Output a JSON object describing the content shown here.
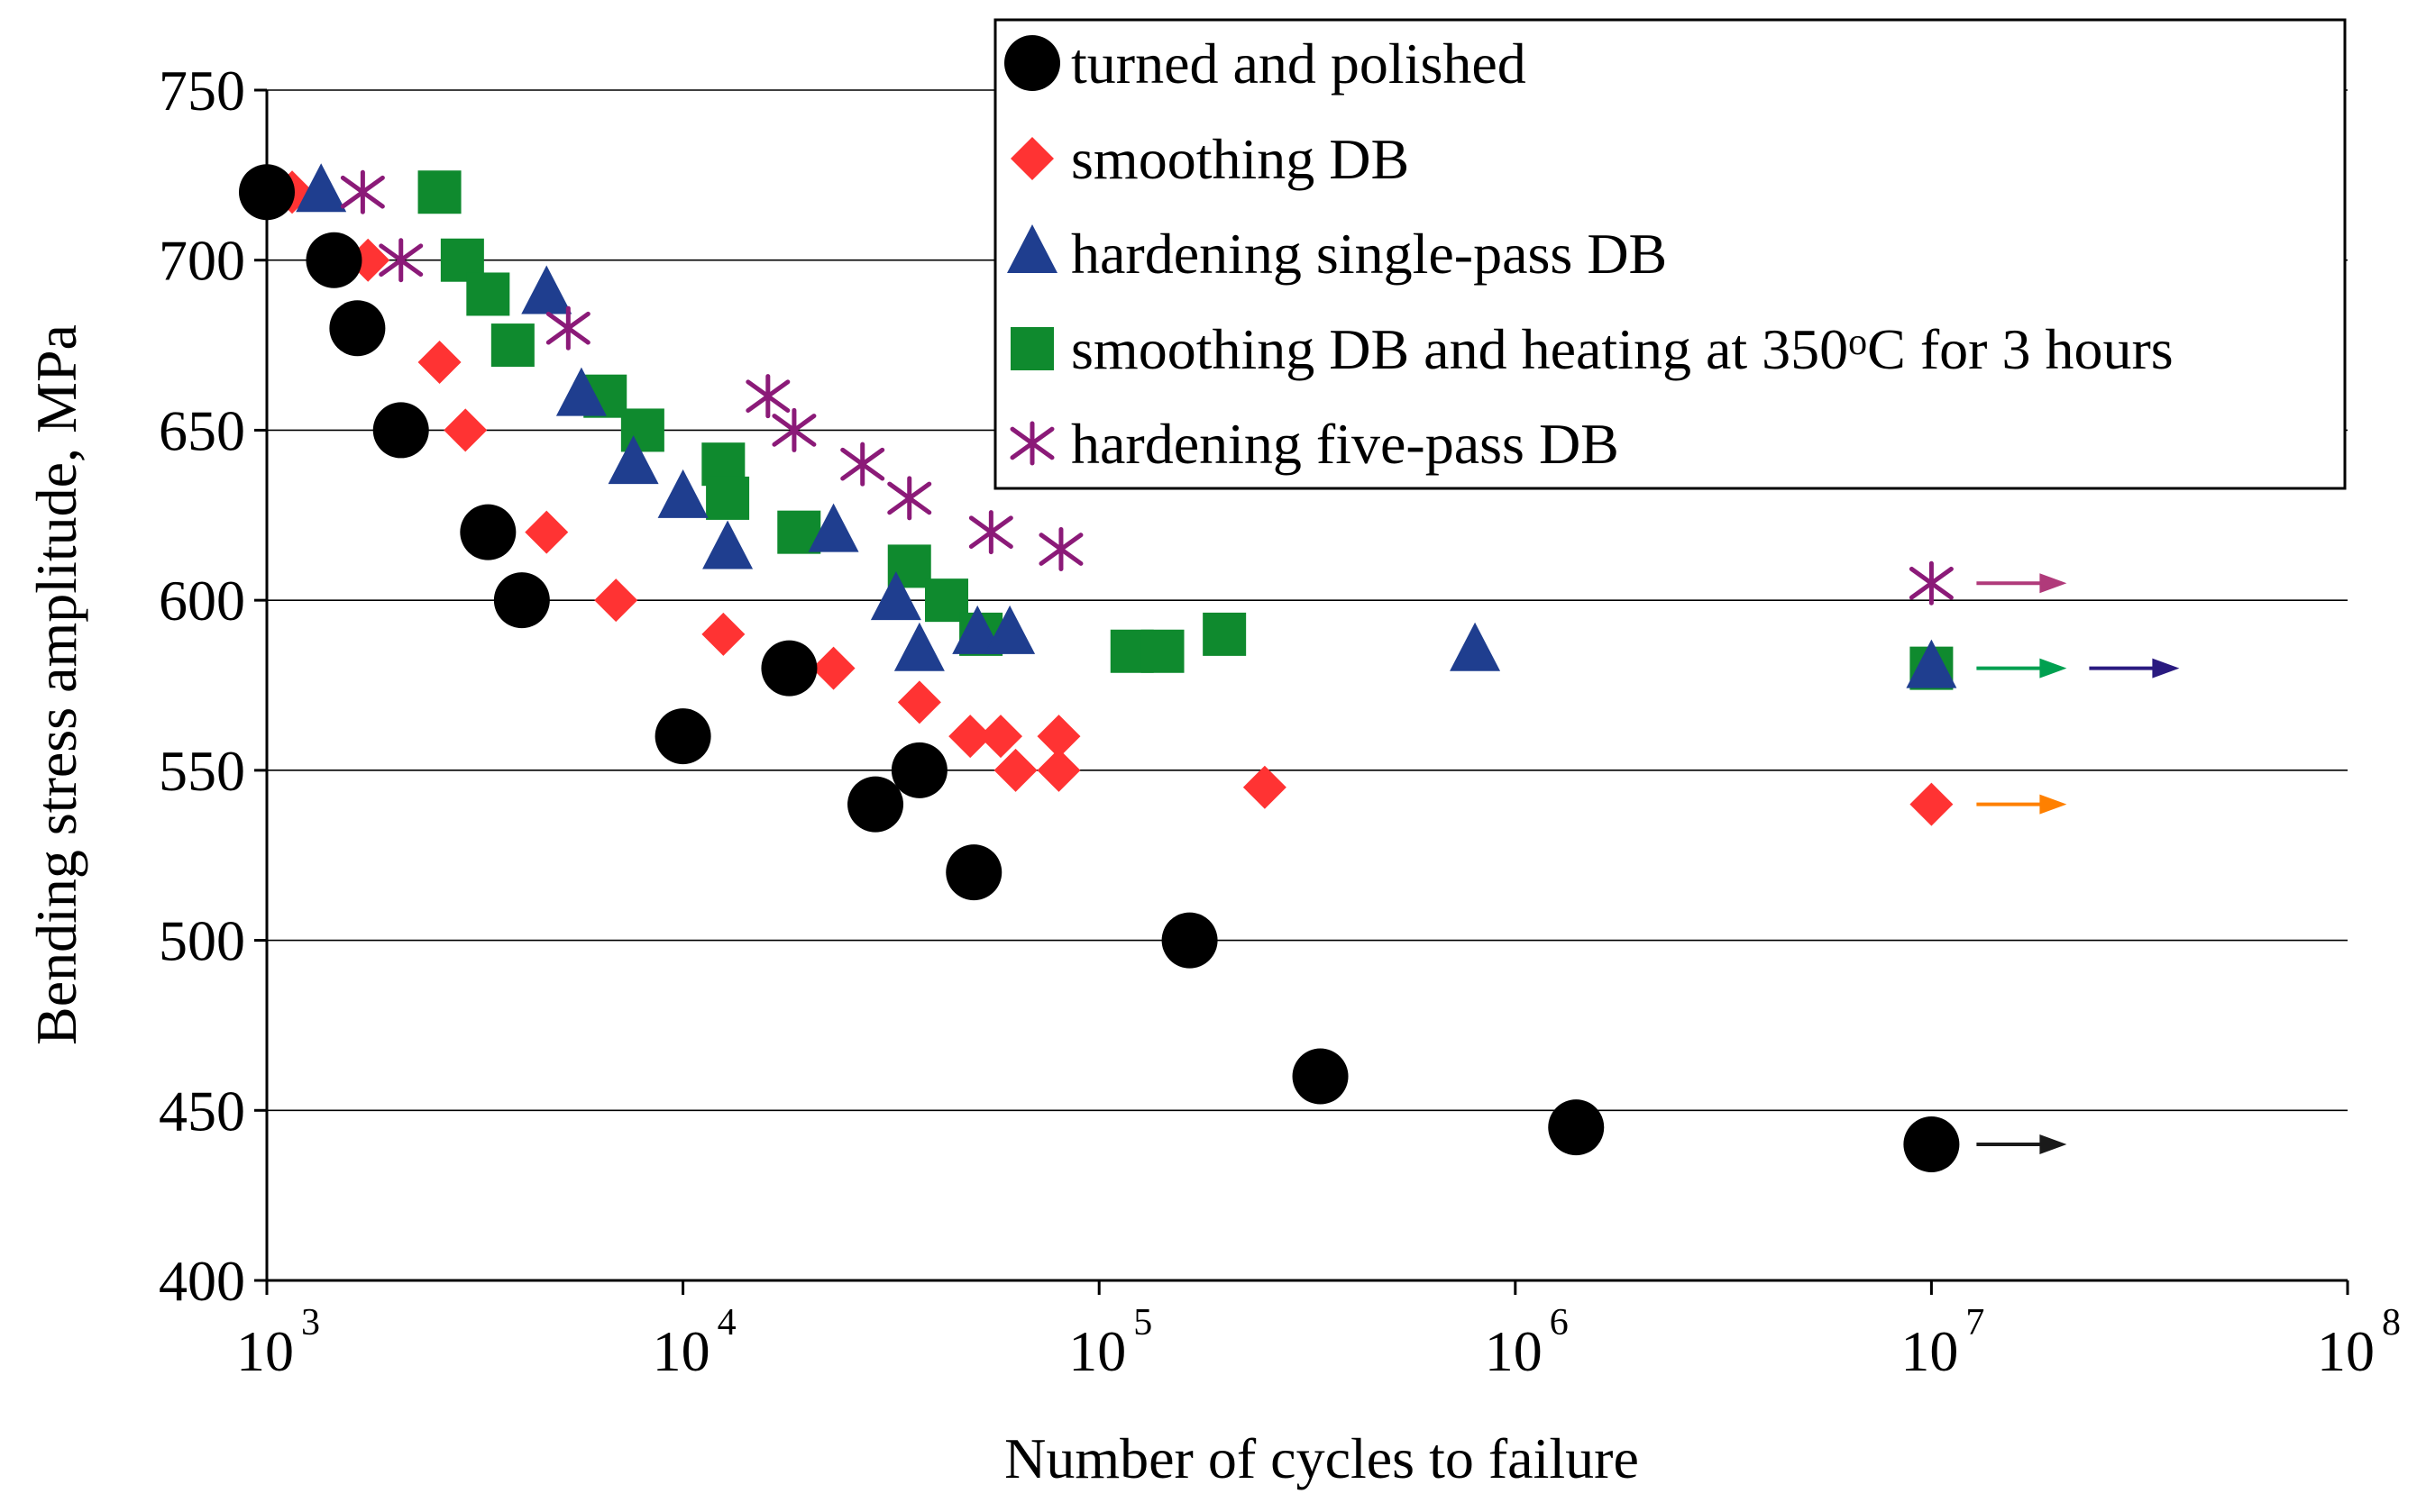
{
  "chart_data": {
    "type": "scatter",
    "title": "",
    "xlabel": "Number of cycles to failure",
    "ylabel": "Bending stress amplitude, MPa",
    "x_scale": "log",
    "xlim": [
      1000,
      100000000
    ],
    "ylim": [
      400,
      750
    ],
    "y_ticks": [
      400,
      450,
      500,
      550,
      600,
      650,
      700,
      750
    ],
    "x_ticks": [
      {
        "value": 1000,
        "base": "10",
        "exp": "3"
      },
      {
        "value": 10000,
        "base": "10",
        "exp": "4"
      },
      {
        "value": 100000,
        "base": "10",
        "exp": "5"
      },
      {
        "value": 1000000,
        "base": "10",
        "exp": "6"
      },
      {
        "value": 10000000,
        "base": "10",
        "exp": "7"
      },
      {
        "value": 100000000,
        "base": "10",
        "exp": "8"
      }
    ],
    "grid": "horizontal",
    "legend_position": "top-right",
    "series": [
      {
        "name": "turned and polished",
        "marker": "circle",
        "color": "#000000",
        "arrow_color": "#1a1a1a",
        "points": [
          [
            1000,
            720
          ],
          [
            1450,
            700
          ],
          [
            1650,
            680
          ],
          [
            2100,
            650
          ],
          [
            3400,
            620
          ],
          [
            4100,
            600
          ],
          [
            10000,
            560
          ],
          [
            18000,
            580
          ],
          [
            29000,
            540
          ],
          [
            37000,
            550
          ],
          [
            50000,
            520
          ],
          [
            165000,
            500
          ],
          [
            340000,
            460
          ],
          [
            1400000,
            445
          ],
          [
            10000000,
            440
          ]
        ],
        "runout": [
          [
            10000000,
            440
          ]
        ]
      },
      {
        "name": "smoothing DB",
        "marker": "diamond",
        "color": "#ff3333",
        "arrow_color": "#ff8000",
        "points": [
          [
            1150,
            720
          ],
          [
            1750,
            700
          ],
          [
            2600,
            670
          ],
          [
            3000,
            650
          ],
          [
            4700,
            620
          ],
          [
            6900,
            600
          ],
          [
            12500,
            590
          ],
          [
            23000,
            580
          ],
          [
            37000,
            570
          ],
          [
            49000,
            560
          ],
          [
            58000,
            560
          ],
          [
            63000,
            550
          ],
          [
            80000,
            560
          ],
          [
            80000,
            550
          ],
          [
            250000,
            545
          ],
          [
            10000000,
            540
          ]
        ],
        "runout": [
          [
            10000000,
            540
          ]
        ]
      },
      {
        "name": "hardening single-pass DB",
        "marker": "triangle",
        "color": "#1f3e8f",
        "arrow_color": "#2a1a80",
        "points": [
          [
            1350,
            720
          ],
          [
            4700,
            690
          ],
          [
            5700,
            660
          ],
          [
            7600,
            640
          ],
          [
            10000,
            630
          ],
          [
            12800,
            615
          ],
          [
            23000,
            620
          ],
          [
            32500,
            600
          ],
          [
            37000,
            585
          ],
          [
            51000,
            590
          ],
          [
            61000,
            590
          ],
          [
            800000,
            585
          ],
          [
            10000000,
            580
          ]
        ],
        "runout": [
          [
            10000000,
            580
          ]
        ],
        "arrow_offset": 1
      },
      {
        "name": "smoothing DB and heating at ",
        "name_value": "350",
        "name_degree": "o",
        "name_suffix": "C for 3 hours",
        "marker": "square",
        "color": "#0f8a2e",
        "arrow_color": "#00a050",
        "points": [
          [
            2600,
            720
          ],
          [
            2950,
            700
          ],
          [
            3400,
            690
          ],
          [
            3900,
            675
          ],
          [
            6500,
            660
          ],
          [
            8000,
            650
          ],
          [
            12500,
            640
          ],
          [
            12800,
            630
          ],
          [
            19000,
            620
          ],
          [
            35000,
            610
          ],
          [
            43000,
            600
          ],
          [
            52000,
            590
          ],
          [
            120000,
            585
          ],
          [
            142000,
            585
          ],
          [
            200000,
            590
          ],
          [
            10000000,
            580
          ]
        ],
        "runout": [
          [
            10000000,
            580
          ]
        ]
      },
      {
        "name": "hardening five-pass DB",
        "marker": "star",
        "color": "#8b1a78",
        "arrow_color": "#b03a7a",
        "points": [
          [
            1700,
            720
          ],
          [
            2100,
            700
          ],
          [
            5300,
            680
          ],
          [
            16000,
            660
          ],
          [
            18500,
            650
          ],
          [
            27000,
            640
          ],
          [
            35000,
            630
          ],
          [
            55000,
            620
          ],
          [
            81000,
            615
          ],
          [
            10000000,
            605
          ]
        ],
        "runout": [
          [
            10000000,
            605
          ]
        ]
      }
    ]
  }
}
